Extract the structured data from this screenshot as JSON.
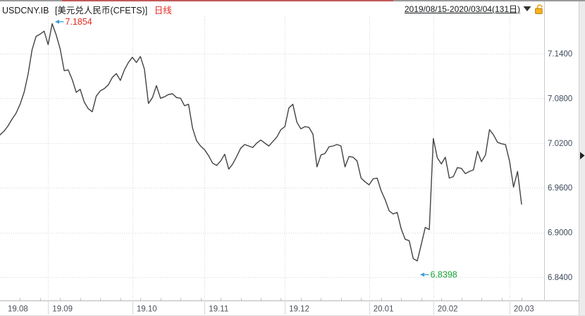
{
  "titlebar": {
    "symbol": "USDCNY.IB",
    "name": "[美元兑人民币(CFETS)]",
    "period": "日线",
    "range": "2019/08/15-2020/03/04(131日)"
  },
  "colors": {
    "line": "#424242",
    "grid": "#d4d4d4",
    "axis_text": "#3e4a5c",
    "xaxis_text": "#4a5058",
    "border": "#c0c0c0",
    "tick": "#c0c0c0",
    "red": "#e8281e",
    "green": "#18a335",
    "arrow": "#3b9dd4",
    "lock_orange": "#f0a41c",
    "triangle": "#1f1f1f",
    "strip_bg": "#ececec"
  },
  "chart_data": {
    "type": "line",
    "title": "USDCNY.IB 美元兑人民币(CFETS) 日线",
    "symbol": "USDCNY.IB",
    "instrument_name": "美元兑人民币(CFETS)",
    "period": "日线",
    "date_range": "2019/08/15-2020/03/04",
    "session_count": 131,
    "x_axis_labels": [
      "19.08",
      "19.09",
      "19.10",
      "19.11",
      "19.12",
      "20.01",
      "20.02",
      "20.03"
    ],
    "month_start_indices": [
      0,
      12,
      33,
      51,
      71,
      92,
      108,
      127
    ],
    "y_tick_labels": [
      "7.1400",
      "7.0800",
      "7.0200",
      "6.9600",
      "6.9000",
      "6.8400"
    ],
    "ylim": [
      6.808,
      7.19
    ],
    "grid": true,
    "legend": "none",
    "values": [
      7.031,
      7.036,
      7.043,
      7.052,
      7.06,
      7.072,
      7.088,
      7.112,
      7.145,
      7.163,
      7.166,
      7.17,
      7.152,
      7.18,
      7.165,
      7.146,
      7.117,
      7.118,
      7.105,
      7.088,
      7.092,
      7.075,
      7.066,
      7.062,
      7.083,
      7.09,
      7.093,
      7.098,
      7.108,
      7.113,
      7.104,
      7.118,
      7.128,
      7.135,
      7.128,
      7.136,
      7.119,
      7.073,
      7.081,
      7.097,
      7.08,
      7.082,
      7.085,
      7.086,
      7.081,
      7.08,
      7.07,
      7.072,
      7.04,
      7.023,
      7.016,
      7.011,
      7.003,
      6.993,
      6.99,
      6.996,
      7.005,
      6.985,
      6.992,
      7.002,
      7.013,
      7.018,
      7.016,
      7.014,
      7.02,
      7.024,
      7.02,
      7.016,
      7.022,
      7.028,
      7.038,
      7.042,
      7.067,
      7.072,
      7.048,
      7.039,
      7.042,
      7.041,
      7.032,
      6.988,
      7.004,
      7.006,
      7.015,
      7.016,
      7.018,
      7.016,
      6.988,
      7.002,
      7.001,
      6.996,
      6.973,
      6.968,
      6.964,
      6.972,
      6.973,
      6.956,
      6.944,
      6.929,
      6.925,
      6.927,
      6.905,
      6.891,
      6.889,
      6.865,
      6.862,
      6.884,
      6.907,
      6.904,
      7.026,
      7.0,
      6.992,
      7.001,
      6.973,
      6.975,
      6.987,
      6.986,
      6.979,
      6.982,
      6.984,
      7.009,
      6.995,
      7.004,
      7.038,
      7.031,
      7.021,
      7.019,
      7.018,
      6.996,
      6.961,
      6.982,
      6.938
    ],
    "annotations": [
      {
        "type": "high",
        "label": "7.1854",
        "value": 7.1854,
        "index": 13,
        "label_color": "#e8281e"
      },
      {
        "type": "low",
        "label": "6.8398",
        "value": 6.8398,
        "index": 104,
        "label_color": "#18a335"
      }
    ]
  }
}
